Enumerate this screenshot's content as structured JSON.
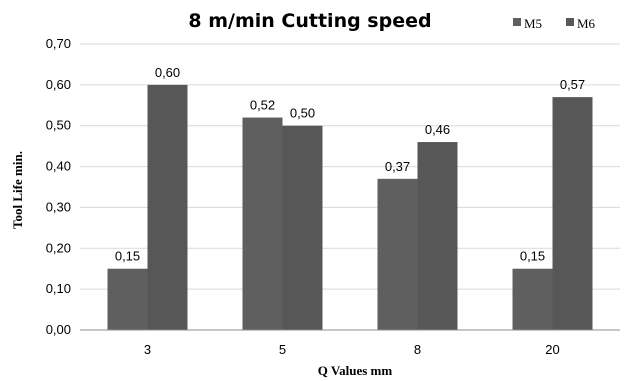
{
  "chart_data": {
    "type": "bar",
    "title": "8 m/min Cutting speed",
    "xlabel": "Q Values mm",
    "ylabel": "Tool Life min.",
    "categories": [
      "3",
      "5",
      "8",
      "20"
    ],
    "series": [
      {
        "name": "M5",
        "values": [
          0.15,
          0.52,
          0.37,
          0.15
        ],
        "labels": [
          "0,15",
          "0,52",
          "0,37",
          "0,15"
        ],
        "color": "#5f5f5f"
      },
      {
        "name": "M6",
        "values": [
          0.6,
          0.5,
          0.46,
          0.57
        ],
        "labels": [
          "0,60",
          "0,50",
          "0,46",
          "0,57"
        ],
        "color": "#575757"
      }
    ],
    "ylim": [
      0,
      0.7
    ],
    "yticks": [
      0,
      0.1,
      0.2,
      0.3,
      0.4,
      0.5,
      0.6,
      0.7
    ],
    "ytick_labels": [
      "0,00",
      "0,10",
      "0,20",
      "0,30",
      "0,40",
      "0,50",
      "0,60",
      "0,70"
    ],
    "grid": true,
    "legend_position": "top-right",
    "colors": {
      "grid": "#d9d9d9",
      "axis": "#8c8c8c"
    }
  }
}
